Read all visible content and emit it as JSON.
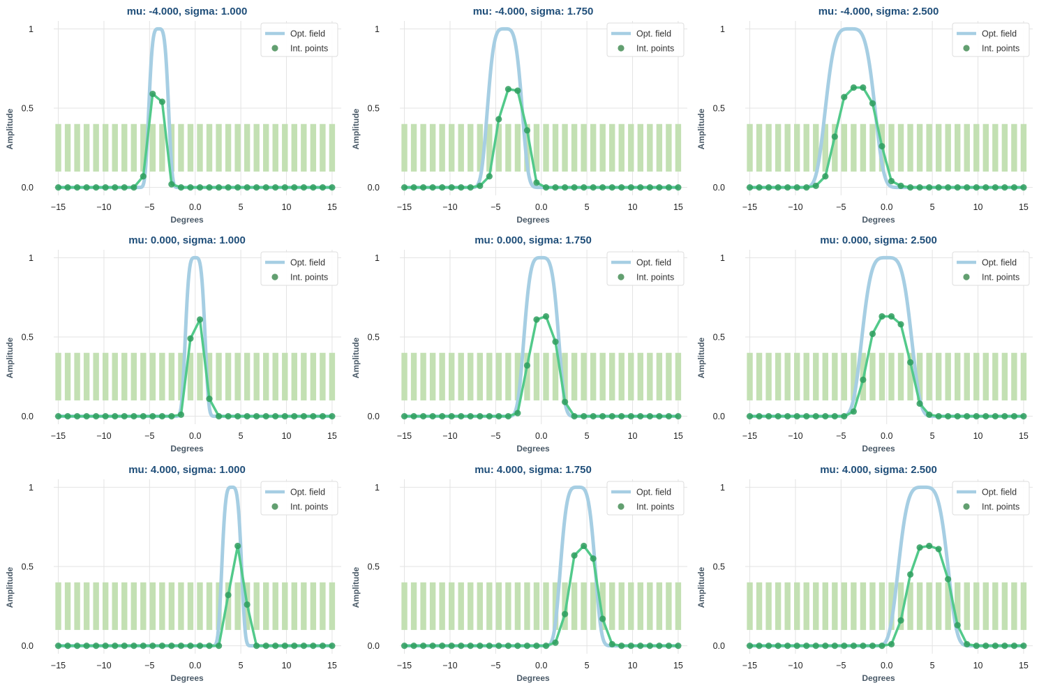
{
  "colors": {
    "field": "#a6cee3",
    "points": "#2f9e5e",
    "points_line": "#52c98a",
    "bars": "#c3e0b3",
    "grid": "#e3e3e3",
    "title": "#1f4e79"
  },
  "chart_data": [
    {
      "type": "line",
      "title": "mu: -4.000, sigma: 1.000",
      "xlabel": "Degrees",
      "ylabel": "Amplitude",
      "mu": -4.0,
      "sigma": 1.0,
      "xlim": [
        -15.5,
        16
      ],
      "ylim": [
        -0.05,
        1.05
      ],
      "xticks": [
        -15,
        -10,
        -5,
        0,
        5,
        10,
        15
      ],
      "yticks": [
        0.0,
        0.5,
        1.0
      ],
      "grid": true,
      "legend": "top-right",
      "series": [
        {
          "name": "Opt. field",
          "kind": "line"
        },
        {
          "name": "Int. points",
          "kind": "scatter",
          "x": [
            -15,
            -13.97,
            -12.93,
            -11.9,
            -10.86,
            -9.83,
            -8.79,
            -7.76,
            -6.72,
            -5.69,
            -4.66,
            -3.62,
            -2.59,
            -1.55,
            -0.52,
            0.52,
            1.55,
            2.59,
            3.62,
            4.66,
            5.69,
            6.72,
            7.76,
            8.79,
            9.83,
            10.86,
            11.9,
            12.93,
            13.97,
            15
          ],
          "y": [
            0,
            0,
            0,
            0,
            0,
            0,
            0,
            0,
            0,
            0.07,
            0.59,
            0.54,
            0.02,
            0,
            0,
            0,
            0,
            0,
            0,
            0,
            0,
            0,
            0,
            0,
            0,
            0,
            0,
            0,
            0,
            0
          ]
        }
      ],
      "bars": {
        "count": 30,
        "from": -15,
        "to": 15,
        "y_bottom": 0.1,
        "y_top": 0.4
      }
    },
    {
      "type": "line",
      "title": "mu: -4.000, sigma: 1.750",
      "xlabel": "Degrees",
      "ylabel": "Amplitude",
      "mu": -4.0,
      "sigma": 1.75,
      "xlim": [
        -15.5,
        16
      ],
      "ylim": [
        -0.05,
        1.05
      ],
      "xticks": [
        -15,
        -10,
        -5,
        0,
        5,
        10,
        15
      ],
      "yticks": [
        0.0,
        0.5,
        1.0
      ],
      "grid": true,
      "legend": "top-right",
      "series": [
        {
          "name": "Opt. field",
          "kind": "line"
        },
        {
          "name": "Int. points",
          "kind": "scatter",
          "x": [
            -15,
            -13.97,
            -12.93,
            -11.9,
            -10.86,
            -9.83,
            -8.79,
            -7.76,
            -6.72,
            -5.69,
            -4.66,
            -3.62,
            -2.59,
            -1.55,
            -0.52,
            0.52,
            1.55,
            2.59,
            3.62,
            4.66,
            5.69,
            6.72,
            7.76,
            8.79,
            9.83,
            10.86,
            11.9,
            12.93,
            13.97,
            15
          ],
          "y": [
            0,
            0,
            0,
            0,
            0,
            0,
            0,
            0,
            0.01,
            0.07,
            0.43,
            0.62,
            0.61,
            0.36,
            0.03,
            0,
            0,
            0,
            0,
            0,
            0,
            0,
            0,
            0,
            0,
            0,
            0,
            0,
            0,
            0
          ]
        }
      ],
      "bars": {
        "count": 30,
        "from": -15,
        "to": 15,
        "y_bottom": 0.1,
        "y_top": 0.4
      }
    },
    {
      "type": "line",
      "title": "mu: -4.000, sigma: 2.500",
      "xlabel": "Degrees",
      "ylabel": "Amplitude",
      "mu": -4.0,
      "sigma": 2.5,
      "xlim": [
        -15.5,
        16
      ],
      "ylim": [
        -0.05,
        1.05
      ],
      "xticks": [
        -15,
        -10,
        -5,
        0,
        5,
        10,
        15
      ],
      "yticks": [
        0.0,
        0.5,
        1.0
      ],
      "grid": true,
      "legend": "top-right",
      "series": [
        {
          "name": "Opt. field",
          "kind": "line"
        },
        {
          "name": "Int. points",
          "kind": "scatter",
          "x": [
            -15,
            -13.97,
            -12.93,
            -11.9,
            -10.86,
            -9.83,
            -8.79,
            -7.76,
            -6.72,
            -5.69,
            -4.66,
            -3.62,
            -2.59,
            -1.55,
            -0.52,
            0.52,
            1.55,
            2.59,
            3.62,
            4.66,
            5.69,
            6.72,
            7.76,
            8.79,
            9.83,
            10.86,
            11.9,
            12.93,
            13.97,
            15
          ],
          "y": [
            0,
            0,
            0,
            0,
            0,
            0,
            0,
            0.01,
            0.07,
            0.32,
            0.57,
            0.63,
            0.63,
            0.53,
            0.26,
            0.04,
            0.01,
            0,
            0,
            0,
            0,
            0,
            0,
            0,
            0,
            0,
            0,
            0,
            0,
            0
          ]
        }
      ],
      "bars": {
        "count": 30,
        "from": -15,
        "to": 15,
        "y_bottom": 0.1,
        "y_top": 0.4
      }
    },
    {
      "type": "line",
      "title": "mu: 0.000, sigma: 1.000",
      "xlabel": "Degrees",
      "ylabel": "Amplitude",
      "mu": 0.0,
      "sigma": 1.0,
      "xlim": [
        -15.5,
        16
      ],
      "ylim": [
        -0.05,
        1.05
      ],
      "xticks": [
        -15,
        -10,
        -5,
        0,
        5,
        10,
        15
      ],
      "yticks": [
        0.0,
        0.5,
        1.0
      ],
      "grid": true,
      "legend": "top-right",
      "series": [
        {
          "name": "Opt. field",
          "kind": "line"
        },
        {
          "name": "Int. points",
          "kind": "scatter",
          "x": [
            -15,
            -13.97,
            -12.93,
            -11.9,
            -10.86,
            -9.83,
            -8.79,
            -7.76,
            -6.72,
            -5.69,
            -4.66,
            -3.62,
            -2.59,
            -1.55,
            -0.52,
            0.52,
            1.55,
            2.59,
            3.62,
            4.66,
            5.69,
            6.72,
            7.76,
            8.79,
            9.83,
            10.86,
            11.9,
            12.93,
            13.97,
            15
          ],
          "y": [
            0,
            0,
            0,
            0,
            0,
            0,
            0,
            0,
            0,
            0,
            0,
            0,
            0,
            0.01,
            0.49,
            0.61,
            0.11,
            0,
            0,
            0,
            0,
            0,
            0,
            0,
            0,
            0,
            0,
            0,
            0,
            0
          ]
        }
      ],
      "bars": {
        "count": 30,
        "from": -15,
        "to": 15,
        "y_bottom": 0.1,
        "y_top": 0.4
      }
    },
    {
      "type": "line",
      "title": "mu: 0.000, sigma: 1.750",
      "xlabel": "Degrees",
      "ylabel": "Amplitude",
      "mu": 0.0,
      "sigma": 1.75,
      "xlim": [
        -15.5,
        16
      ],
      "ylim": [
        -0.05,
        1.05
      ],
      "xticks": [
        -15,
        -10,
        -5,
        0,
        5,
        10,
        15
      ],
      "yticks": [
        0.0,
        0.5,
        1.0
      ],
      "grid": true,
      "legend": "top-right",
      "series": [
        {
          "name": "Opt. field",
          "kind": "line"
        },
        {
          "name": "Int. points",
          "kind": "scatter",
          "x": [
            -15,
            -13.97,
            -12.93,
            -11.9,
            -10.86,
            -9.83,
            -8.79,
            -7.76,
            -6.72,
            -5.69,
            -4.66,
            -3.62,
            -2.59,
            -1.55,
            -0.52,
            0.52,
            1.55,
            2.59,
            3.62,
            4.66,
            5.69,
            6.72,
            7.76,
            8.79,
            9.83,
            10.86,
            11.9,
            12.93,
            13.97,
            15
          ],
          "y": [
            0,
            0,
            0,
            0,
            0,
            0,
            0,
            0,
            0,
            0,
            0,
            0,
            0.02,
            0.32,
            0.61,
            0.63,
            0.47,
            0.09,
            0,
            0,
            0,
            0,
            0,
            0,
            0,
            0,
            0,
            0,
            0,
            0
          ]
        }
      ],
      "bars": {
        "count": 30,
        "from": -15,
        "to": 15,
        "y_bottom": 0.1,
        "y_top": 0.4
      }
    },
    {
      "type": "line",
      "title": "mu: 0.000, sigma: 2.500",
      "xlabel": "Degrees",
      "ylabel": "Amplitude",
      "mu": 0.0,
      "sigma": 2.5,
      "xlim": [
        -15.5,
        16
      ],
      "ylim": [
        -0.05,
        1.05
      ],
      "xticks": [
        -15,
        -10,
        -5,
        0,
        5,
        10,
        15
      ],
      "yticks": [
        0.0,
        0.5,
        1.0
      ],
      "grid": true,
      "legend": "top-right",
      "series": [
        {
          "name": "Opt. field",
          "kind": "line"
        },
        {
          "name": "Int. points",
          "kind": "scatter",
          "x": [
            -15,
            -13.97,
            -12.93,
            -11.9,
            -10.86,
            -9.83,
            -8.79,
            -7.76,
            -6.72,
            -5.69,
            -4.66,
            -3.62,
            -2.59,
            -1.55,
            -0.52,
            0.52,
            1.55,
            2.59,
            3.62,
            4.66,
            5.69,
            6.72,
            7.76,
            8.79,
            9.83,
            10.86,
            11.9,
            12.93,
            13.97,
            15
          ],
          "y": [
            0,
            0,
            0,
            0,
            0,
            0,
            0,
            0,
            0,
            0,
            0,
            0.03,
            0.23,
            0.52,
            0.63,
            0.63,
            0.58,
            0.34,
            0.08,
            0.01,
            0,
            0,
            0,
            0,
            0,
            0,
            0,
            0,
            0,
            0
          ]
        }
      ],
      "bars": {
        "count": 30,
        "from": -15,
        "to": 15,
        "y_bottom": 0.1,
        "y_top": 0.4
      }
    },
    {
      "type": "line",
      "title": "mu: 4.000, sigma: 1.000",
      "xlabel": "Degrees",
      "ylabel": "Amplitude",
      "mu": 4.0,
      "sigma": 1.0,
      "xlim": [
        -15.5,
        16
      ],
      "ylim": [
        -0.05,
        1.05
      ],
      "xticks": [
        -15,
        -10,
        -5,
        0,
        5,
        10,
        15
      ],
      "yticks": [
        0.0,
        0.5,
        1.0
      ],
      "grid": true,
      "legend": "top-right",
      "series": [
        {
          "name": "Opt. field",
          "kind": "line"
        },
        {
          "name": "Int. points",
          "kind": "scatter",
          "x": [
            -15,
            -13.97,
            -12.93,
            -11.9,
            -10.86,
            -9.83,
            -8.79,
            -7.76,
            -6.72,
            -5.69,
            -4.66,
            -3.62,
            -2.59,
            -1.55,
            -0.52,
            0.52,
            1.55,
            2.59,
            3.62,
            4.66,
            5.69,
            6.72,
            7.76,
            8.79,
            9.83,
            10.86,
            11.9,
            12.93,
            13.97,
            15
          ],
          "y": [
            0,
            0,
            0,
            0,
            0,
            0,
            0,
            0,
            0,
            0,
            0,
            0,
            0,
            0,
            0,
            0,
            0,
            0,
            0.32,
            0.63,
            0.26,
            0,
            0,
            0,
            0,
            0,
            0,
            0,
            0,
            0
          ]
        }
      ],
      "bars": {
        "count": 30,
        "from": -15,
        "to": 15,
        "y_bottom": 0.1,
        "y_top": 0.4
      }
    },
    {
      "type": "line",
      "title": "mu: 4.000, sigma: 1.750",
      "xlabel": "Degrees",
      "ylabel": "Amplitude",
      "mu": 4.0,
      "sigma": 1.75,
      "xlim": [
        -15.5,
        16
      ],
      "ylim": [
        -0.05,
        1.05
      ],
      "xticks": [
        -15,
        -10,
        -5,
        0,
        5,
        10,
        15
      ],
      "yticks": [
        0.0,
        0.5,
        1.0
      ],
      "grid": true,
      "legend": "top-right",
      "series": [
        {
          "name": "Opt. field",
          "kind": "line"
        },
        {
          "name": "Int. points",
          "kind": "scatter",
          "x": [
            -15,
            -13.97,
            -12.93,
            -11.9,
            -10.86,
            -9.83,
            -8.79,
            -7.76,
            -6.72,
            -5.69,
            -4.66,
            -3.62,
            -2.59,
            -1.55,
            -0.52,
            0.52,
            1.55,
            2.59,
            3.62,
            4.66,
            5.69,
            6.72,
            7.76,
            8.79,
            9.83,
            10.86,
            11.9,
            12.93,
            13.97,
            15
          ],
          "y": [
            0,
            0,
            0,
            0,
            0,
            0,
            0,
            0,
            0,
            0,
            0,
            0,
            0,
            0,
            0,
            0,
            0.02,
            0.2,
            0.57,
            0.63,
            0.55,
            0.17,
            0.01,
            0,
            0,
            0,
            0,
            0,
            0,
            0
          ]
        }
      ],
      "bars": {
        "count": 30,
        "from": -15,
        "to": 15,
        "y_bottom": 0.1,
        "y_top": 0.4
      }
    },
    {
      "type": "line",
      "title": "mu: 4.000, sigma: 2.500",
      "xlabel": "Degrees",
      "ylabel": "Amplitude",
      "mu": 4.0,
      "sigma": 2.5,
      "xlim": [
        -15.5,
        16
      ],
      "ylim": [
        -0.05,
        1.05
      ],
      "xticks": [
        -15,
        -10,
        -5,
        0,
        5,
        10,
        15
      ],
      "yticks": [
        0.0,
        0.5,
        1.0
      ],
      "grid": true,
      "legend": "top-right",
      "series": [
        {
          "name": "Opt. field",
          "kind": "line"
        },
        {
          "name": "Int. points",
          "kind": "scatter",
          "x": [
            -15,
            -13.97,
            -12.93,
            -11.9,
            -10.86,
            -9.83,
            -8.79,
            -7.76,
            -6.72,
            -5.69,
            -4.66,
            -3.62,
            -2.59,
            -1.55,
            -0.52,
            0.52,
            1.55,
            2.59,
            3.62,
            4.66,
            5.69,
            6.72,
            7.76,
            8.79,
            9.83,
            10.86,
            11.9,
            12.93,
            13.97,
            15
          ],
          "y": [
            0,
            0,
            0,
            0,
            0,
            0,
            0,
            0,
            0,
            0,
            0,
            0,
            0,
            0,
            0,
            0.01,
            0.16,
            0.45,
            0.62,
            0.63,
            0.61,
            0.42,
            0.13,
            0.01,
            0,
            0,
            0,
            0,
            0,
            0
          ]
        }
      ],
      "bars": {
        "count": 30,
        "from": -15,
        "to": 15,
        "y_bottom": 0.1,
        "y_top": 0.4
      }
    }
  ]
}
